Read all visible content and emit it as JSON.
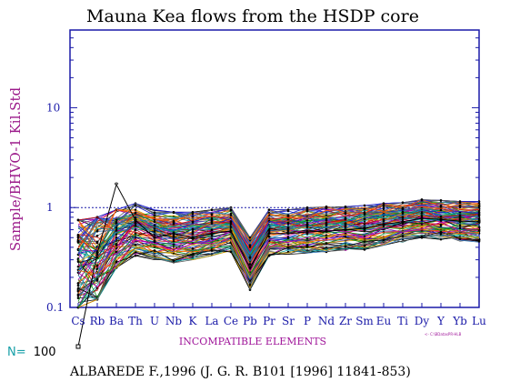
{
  "chart_data": {
    "type": "line",
    "title": "Mauna Kea flows from the HSDP core",
    "ylabel": "Sample/BHVO-1 Kil.Std",
    "xlabel": "INCOMPATIBLE ELEMENTS",
    "y_scale": "log",
    "ylim": [
      0.1,
      60
    ],
    "ytick_labels": [
      "0.1",
      "1",
      "10"
    ],
    "ytick_values": [
      0.1,
      1,
      10
    ],
    "reference_line": 1,
    "categories": [
      "Cs",
      "Rb",
      "Ba",
      "Th",
      "U",
      "Nb",
      "K",
      "La",
      "Ce",
      "Pb",
      "Pr",
      "Sr",
      "P",
      "Nd",
      "Zr",
      "Sm",
      "Eu",
      "Ti",
      "Dy",
      "Y",
      "Yb",
      "Lu"
    ],
    "sample_count_label": "N=",
    "sample_count": "100",
    "file_note": "<- C:\\BDatasPR-HLB",
    "citation": "ALBAREDE F.,1996 (J. G. R. B101 [1996] 11841-853)",
    "envelope_high": [
      0.75,
      0.8,
      0.95,
      1.1,
      0.95,
      0.9,
      0.9,
      0.95,
      1.0,
      0.5,
      0.95,
      0.95,
      1.0,
      1.02,
      1.02,
      1.05,
      1.1,
      1.12,
      1.2,
      1.18,
      1.15,
      1.15
    ],
    "envelope_low": [
      0.1,
      0.12,
      0.25,
      0.33,
      0.3,
      0.28,
      0.3,
      0.33,
      0.36,
      0.15,
      0.33,
      0.34,
      0.35,
      0.36,
      0.37,
      0.38,
      0.42,
      0.45,
      0.5,
      0.48,
      0.46,
      0.45
    ],
    "highlight_series": {
      "name": "",
      "values": [
        0.05,
        0.35,
        1.7,
        0.75,
        0.5,
        0.55,
        0.5,
        0.55,
        0.58,
        0.25,
        0.55,
        0.55,
        0.57,
        0.58,
        0.6,
        0.62,
        0.68,
        0.72,
        0.78,
        0.76,
        0.73,
        0.72
      ]
    },
    "colors": {
      "frame": "#1a1aa8",
      "ylabel": "#9b1a8a",
      "xlabel": "#a0169a",
      "count": "#18a0a8",
      "series_palette": [
        "#000000",
        "#1f1fd0",
        "#109020",
        "#c81010",
        "#b000b0",
        "#00a0a0",
        "#d0a000",
        "#606060",
        "#ff6000",
        "#2a6fb0"
      ]
    }
  }
}
